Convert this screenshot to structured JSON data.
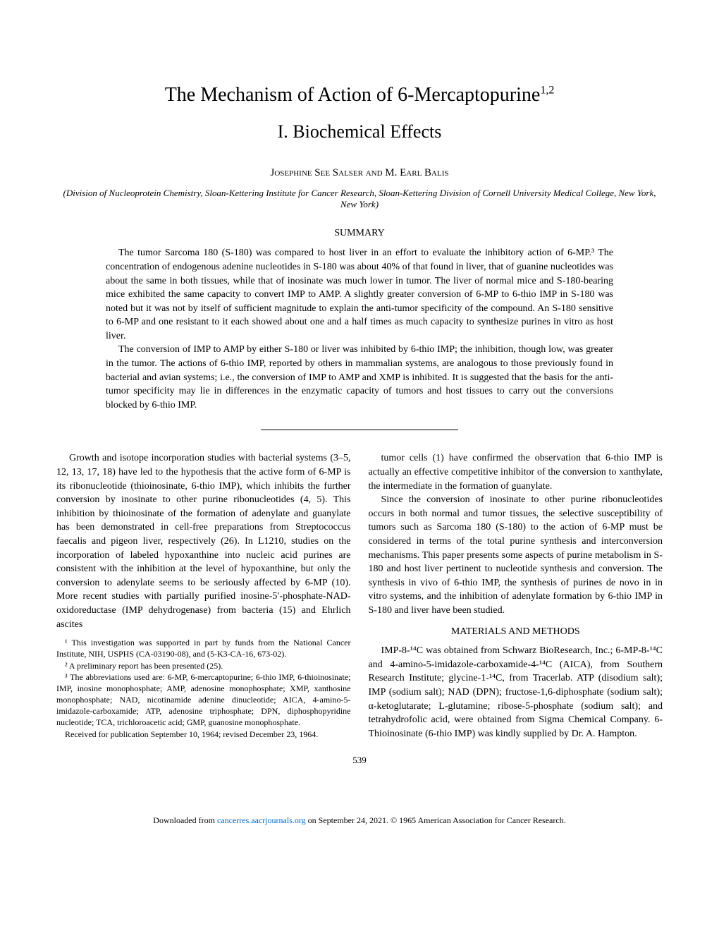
{
  "title": "The Mechanism of Action of 6-Mercaptopurine",
  "title_superscript": "1,2",
  "subtitle": "I. Biochemical Effects",
  "authors": "Josephine See Salser and M. Earl Balis",
  "affiliation": "(Division of Nucleoprotein Chemistry, Sloan-Kettering Institute for Cancer Research, Sloan-Kettering Division of Cornell University Medical College, New York, New York)",
  "summary_heading": "SUMMARY",
  "summary_p1": "The tumor Sarcoma 180 (S-180) was compared to host liver in an effort to evaluate the inhibitory action of 6-MP.³ The concentration of endogenous adenine nucleotides in S-180 was about 40% of that found in liver, that of guanine nucleotides was about the same in both tissues, while that of inosinate was much lower in tumor. The liver of normal mice and S-180-bearing mice exhibited the same capacity to convert IMP to AMP. A slightly greater conversion of 6-MP to 6-thio IMP in S-180 was noted but it was not by itself of sufficient magnitude to explain the anti-tumor specificity of the compound. An S-180 sensitive to 6-MP and one resistant to it each showed about one and a half times as much capacity to synthesize purines in vitro as host liver.",
  "summary_p2": "The conversion of IMP to AMP by either S-180 or liver was inhibited by 6-thio IMP; the inhibition, though low, was greater in the tumor. The actions of 6-thio IMP, reported by others in mammalian systems, are analogous to those previously found in bacterial and avian systems; i.e., the conversion of IMP to AMP and XMP is inhibited. It is suggested that the basis for the anti-tumor specificity may lie in differences in the enzymatic capacity of tumors and host tissues to carry out the conversions blocked by 6-thio IMP.",
  "left_col_p1": "Growth and isotope incorporation studies with bacterial systems (3–5, 12, 13, 17, 18) have led to the hypothesis that the active form of 6-MP is its ribonucleotide (thioinosinate, 6-thio IMP), which inhibits the further conversion by inosinate to other purine ribonucleotides (4, 5). This inhibition by thioinosinate of the formation of adenylate and guanylate has been demonstrated in cell-free preparations from Streptococcus faecalis and pigeon liver, respectively (26). In L1210, studies on the incorporation of labeled hypoxanthine into nucleic acid purines are consistent with the inhibition at the level of hypoxanthine, but only the conversion to adenylate seems to be seriously affected by 6-MP (10). More recent studies with partially purified inosine-5′-phosphate-NAD-oxidoreductase (IMP dehydrogenase) from bacteria (15) and Ehrlich ascites",
  "footnote_1": "¹ This investigation was supported in part by funds from the National Cancer Institute, NIH, USPHS (CA-03190-08), and (5-K3-CA-16, 673-02).",
  "footnote_2": "² A preliminary report has been presented (25).",
  "footnote_3": "³ The abbreviations used are: 6-MP, 6-mercaptopurine; 6-thio IMP, 6-thioinosinate; IMP, inosine monophosphate; AMP, adenosine monophosphate; XMP, xanthosine monophosphate; NAD, nicotinamide adenine dinucleotide; AICA, 4-amino-5-imidazole-carboxamide; ATP, adenosine triphosphate; DPN, diphosphopyridine nucleotide; TCA, trichloroacetic acid; GMP, guanosine monophosphate.",
  "footnote_received": "Received for publication September 10, 1964; revised December 23, 1964.",
  "right_col_p1": "tumor cells (1) have confirmed the observation that 6-thio IMP is actually an effective competitive inhibitor of the conversion to xanthylate, the intermediate in the formation of guanylate.",
  "right_col_p2": "Since the conversion of inosinate to other purine ribonucleotides occurs in both normal and tumor tissues, the selective susceptibility of tumors such as Sarcoma 180 (S-180) to the action of 6-MP must be considered in terms of the total purine synthesis and interconversion mechanisms. This paper presents some aspects of purine metabolism in S-180 and host liver pertinent to nucleotide synthesis and conversion. The synthesis in vivo of 6-thio IMP, the synthesis of purines de novo in in vitro systems, and the inhibition of adenylate formation by 6-thio IMP in S-180 and liver have been studied.",
  "materials_heading": "MATERIALS AND METHODS",
  "right_col_p3": "IMP-8-¹⁴C was obtained from Schwarz BioResearch, Inc.; 6-MP-8-¹⁴C and 4-amino-5-imidazole-carboxamide-4-¹⁴C (AICA), from Southern Research Institute; glycine-1-¹⁴C, from Tracerlab. ATP (disodium salt); IMP (sodium salt); NAD (DPN); fructose-1,6-diphosphate (sodium salt); α-ketoglutarate; L-glutamine; ribose-5-phosphate (sodium salt); and tetrahydrofolic acid, were obtained from Sigma Chemical Company. 6-Thioinosinate (6-thio IMP) was kindly supplied by Dr. A. Hampton.",
  "page_number": "539",
  "footer_text_pre": "Downloaded from ",
  "footer_link": "cancerres.aacrjournals.org",
  "footer_text_post": " on September 24, 2021. © 1965 American Association for Cancer Research."
}
